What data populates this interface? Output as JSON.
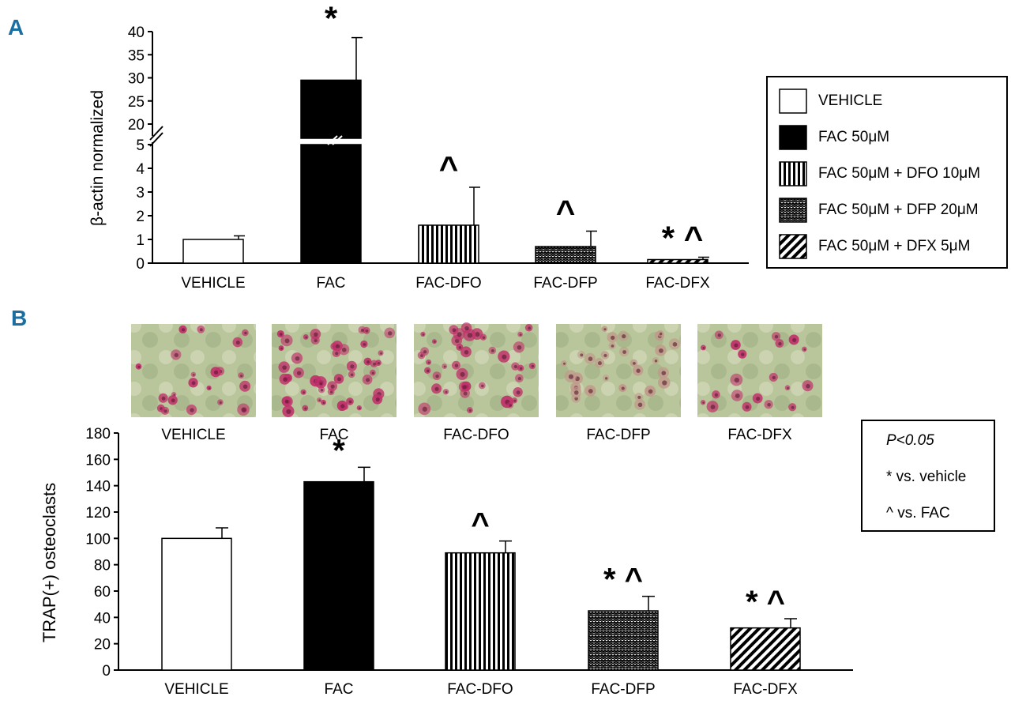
{
  "chart_data": [
    {
      "type": "bar",
      "panel_label": "A",
      "ylabel": "β-actin normalized",
      "xlabel": "",
      "axis_break": true,
      "ylim_lower": [
        0,
        5
      ],
      "ylim_upper": [
        20,
        40
      ],
      "yticks_lower": [
        "0",
        "1",
        "2",
        "3",
        "4",
        "5"
      ],
      "yticks_upper": [
        "20",
        "25",
        "30",
        "35",
        "40"
      ],
      "categories": [
        "VEHICLE",
        "FAC",
        "FAC-DFO",
        "FAC-DFP",
        "FAC-DFX"
      ],
      "values": [
        1.0,
        29.5,
        1.6,
        0.7,
        0.15
      ],
      "errors": [
        0.15,
        9.2,
        1.6,
        0.65,
        0.1
      ],
      "patterns": [
        "white",
        "black",
        "vertical",
        "wave",
        "diagonal"
      ],
      "annotations": [
        "",
        "*",
        "^",
        "^",
        "* ^"
      ],
      "legend": {
        "position": "right",
        "items": [
          "VEHICLE",
          "FAC 50μM",
          "FAC 50μM + DFO 10μM",
          "FAC 50μM + DFP 20μM",
          "FAC 50μM + DFX 5μM"
        ]
      }
    },
    {
      "type": "bar",
      "panel_label": "B",
      "ylabel": "TRAP(+) osteoclasts",
      "xlabel": "",
      "ylim": [
        0,
        180
      ],
      "yticks": [
        "0",
        "20",
        "40",
        "60",
        "80",
        "100",
        "120",
        "140",
        "160",
        "180"
      ],
      "categories": [
        "VEHICLE",
        "FAC",
        "FAC-DFO",
        "FAC-DFP",
        "FAC-DFX"
      ],
      "values": [
        100,
        143,
        89,
        45,
        32
      ],
      "errors": [
        8,
        11,
        9,
        11,
        7
      ],
      "patterns": [
        "white",
        "black",
        "vertical",
        "wave",
        "diagonal"
      ],
      "annotations": [
        "",
        "*",
        "^",
        "* ^",
        "* ^"
      ],
      "image_labels": [
        "VEHICLE",
        "FAC",
        "FAC-DFO",
        "FAC-DFP",
        "FAC-DFX"
      ],
      "note": {
        "line1": "P<0.05",
        "line2": "* vs. vehicle",
        "line3": "^ vs. FAC"
      }
    }
  ],
  "colors": {
    "panel_label": "#1a6fa0",
    "cell_pink": "#c0306a",
    "tissue_green": "#b9c59a"
  }
}
